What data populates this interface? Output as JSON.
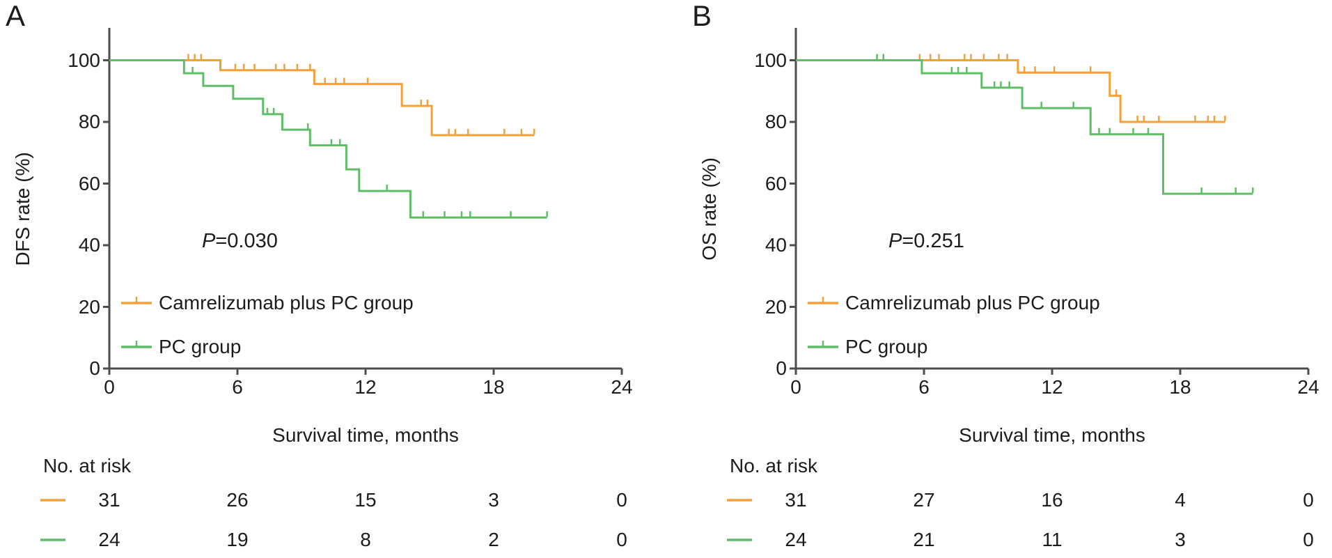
{
  "figure_background": "#ffffff",
  "axis_color": "#4d4d4d",
  "text_color": "#1c1c1c",
  "chart_data": [
    {
      "type": "line",
      "chart_kind": "kaplan-meier-step",
      "panel_label": "A",
      "ylabel": "DFS rate (%)",
      "xlabel": "Survival time, months",
      "annotation": "P=0.030",
      "p_italic": "P",
      "p_rest": "=0.030",
      "xlim": [
        0,
        24
      ],
      "ylim": [
        0,
        100
      ],
      "xticks": [
        0,
        6,
        12,
        18,
        24
      ],
      "yticks": [
        0,
        20,
        40,
        60,
        80,
        100
      ],
      "grid": false,
      "legend_position": "lower-left-inside",
      "series": [
        {
          "name": "Camrelizumab plus PC group",
          "color": "#F4A037",
          "steps": [
            [
              0,
              100
            ],
            [
              5.2,
              96.8
            ],
            [
              9.6,
              92.3
            ],
            [
              13.7,
              85.2
            ],
            [
              15.1,
              75.7
            ]
          ],
          "end_time": 19.9,
          "censors": [
            [
              3.7,
              100
            ],
            [
              4.0,
              100
            ],
            [
              4.3,
              100
            ],
            [
              5.9,
              96.8
            ],
            [
              6.3,
              96.8
            ],
            [
              6.8,
              96.8
            ],
            [
              7.8,
              96.8
            ],
            [
              8.2,
              96.8
            ],
            [
              8.8,
              96.8
            ],
            [
              9.4,
              96.8
            ],
            [
              10.1,
              92.3
            ],
            [
              10.6,
              92.3
            ],
            [
              11.0,
              92.3
            ],
            [
              12.1,
              92.3
            ],
            [
              14.6,
              85.2
            ],
            [
              14.9,
              85.2
            ],
            [
              15.9,
              75.7
            ],
            [
              16.2,
              75.7
            ],
            [
              16.8,
              75.7
            ],
            [
              18.5,
              75.7
            ],
            [
              19.3,
              75.7
            ],
            [
              19.9,
              75.7
            ]
          ]
        },
        {
          "name": "PC group",
          "color": "#5FBD68",
          "steps": [
            [
              0,
              100
            ],
            [
              3.5,
              95.8
            ],
            [
              4.4,
              91.7
            ],
            [
              5.8,
              87.5
            ],
            [
              7.2,
              82.5
            ],
            [
              8.1,
              77.5
            ],
            [
              9.4,
              72.4
            ],
            [
              11.1,
              64.6
            ],
            [
              11.7,
              57.6
            ],
            [
              14.1,
              49.0
            ]
          ],
          "end_time": 20.5,
          "censors": [
            [
              3.9,
              95.8
            ],
            [
              7.4,
              82.5
            ],
            [
              7.7,
              82.5
            ],
            [
              9.3,
              77.5
            ],
            [
              10.4,
              72.4
            ],
            [
              10.8,
              72.4
            ],
            [
              13.0,
              57.6
            ],
            [
              14.7,
              49.0
            ],
            [
              15.7,
              49.0
            ],
            [
              16.5,
              49.0
            ],
            [
              16.9,
              49.0
            ],
            [
              18.8,
              49.0
            ],
            [
              20.5,
              49.0
            ]
          ]
        }
      ],
      "at_risk": {
        "header": "No. at risk",
        "times": [
          0,
          6,
          12,
          18,
          24
        ],
        "rows": [
          {
            "name": "Camrelizumab plus PC group",
            "color": "#F4A037",
            "counts": [
              "31",
              "26",
              "15",
              "3",
              "0"
            ]
          },
          {
            "name": "PC group",
            "color": "#5FBD68",
            "counts": [
              "24",
              "19",
              "8",
              "2",
              "0"
            ]
          }
        ]
      }
    },
    {
      "type": "line",
      "chart_kind": "kaplan-meier-step",
      "panel_label": "B",
      "ylabel": "OS rate (%)",
      "xlabel": "Survival time, months",
      "annotation": "P=0.251",
      "p_italic": "P",
      "p_rest": "=0.251",
      "xlim": [
        0,
        24
      ],
      "ylim": [
        0,
        100
      ],
      "xticks": [
        0,
        6,
        12,
        18,
        24
      ],
      "yticks": [
        0,
        20,
        40,
        60,
        80,
        100
      ],
      "grid": false,
      "legend_position": "lower-left-inside",
      "series": [
        {
          "name": "Camrelizumab plus PC group",
          "color": "#F4A037",
          "steps": [
            [
              0,
              100
            ],
            [
              10.4,
              96.0
            ],
            [
              14.7,
              88.5
            ],
            [
              15.2,
              80.0
            ]
          ],
          "end_time": 20.1,
          "censors": [
            [
              5.8,
              100
            ],
            [
              6.3,
              100
            ],
            [
              6.7,
              100
            ],
            [
              7.9,
              100
            ],
            [
              8.2,
              100
            ],
            [
              8.8,
              100
            ],
            [
              9.5,
              100
            ],
            [
              9.9,
              100
            ],
            [
              10.7,
              96.0
            ],
            [
              11.2,
              96.0
            ],
            [
              12.1,
              96.0
            ],
            [
              13.8,
              96.0
            ],
            [
              15.0,
              88.5
            ],
            [
              16.0,
              80.0
            ],
            [
              16.3,
              80.0
            ],
            [
              17.0,
              80.0
            ],
            [
              18.7,
              80.0
            ],
            [
              19.3,
              80.0
            ],
            [
              19.6,
              80.0
            ],
            [
              20.1,
              80.0
            ]
          ]
        },
        {
          "name": "PC group",
          "color": "#5FBD68",
          "steps": [
            [
              0,
              100
            ],
            [
              5.9,
              95.8
            ],
            [
              8.7,
              91.1
            ],
            [
              10.6,
              84.5
            ],
            [
              13.8,
              76.0
            ],
            [
              17.2,
              56.7
            ]
          ],
          "end_time": 21.4,
          "censors": [
            [
              3.8,
              100
            ],
            [
              4.1,
              100
            ],
            [
              7.3,
              95.8
            ],
            [
              7.6,
              95.8
            ],
            [
              8.0,
              95.8
            ],
            [
              9.3,
              91.1
            ],
            [
              9.6,
              91.1
            ],
            [
              10.0,
              91.1
            ],
            [
              11.5,
              84.5
            ],
            [
              13.0,
              84.5
            ],
            [
              14.2,
              76.0
            ],
            [
              14.7,
              76.0
            ],
            [
              15.8,
              76.0
            ],
            [
              16.5,
              76.0
            ],
            [
              19.0,
              56.7
            ],
            [
              20.6,
              56.7
            ],
            [
              21.4,
              56.7
            ]
          ]
        }
      ],
      "at_risk": {
        "header": "No. at risk",
        "times": [
          0,
          6,
          12,
          18,
          24
        ],
        "rows": [
          {
            "name": "Camrelizumab plus PC group",
            "color": "#F4A037",
            "counts": [
              "31",
              "27",
              "16",
              "4",
              "0"
            ]
          },
          {
            "name": "PC group",
            "color": "#5FBD68",
            "counts": [
              "24",
              "21",
              "11",
              "3",
              "0"
            ]
          }
        ]
      }
    }
  ]
}
